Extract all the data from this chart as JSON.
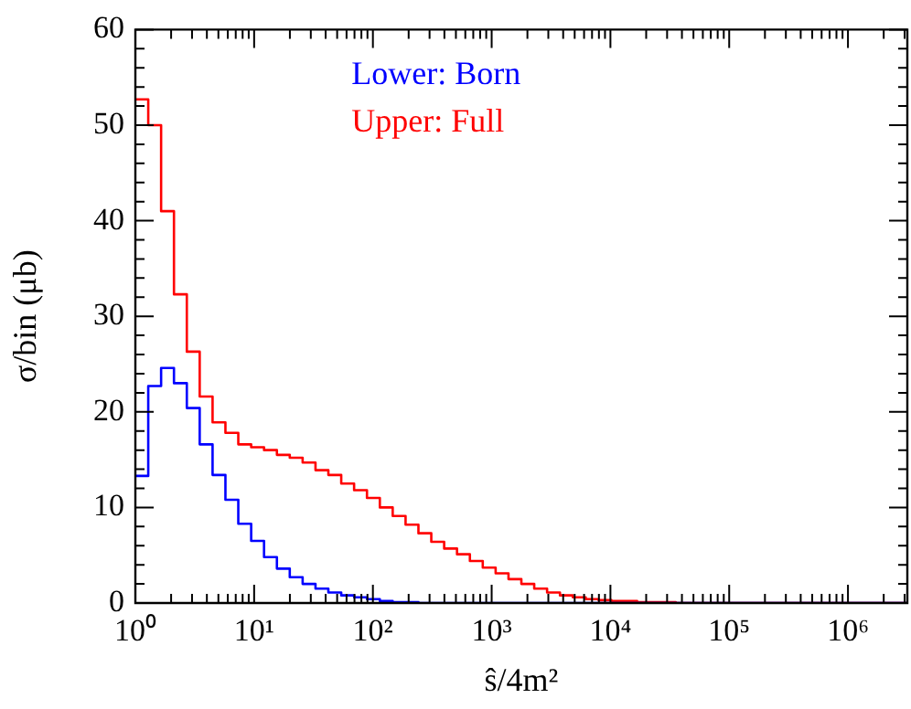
{
  "chart_data": {
    "type": "histogram",
    "xlabel": "ŝ/4m²",
    "ylabel": "σ/bin (μb)",
    "log": "x",
    "grid": false,
    "legend": "top",
    "bins": [
      1,
      1.284,
      1.647,
      2.113,
      2.712,
      3.481,
      4.467,
      5.732,
      7.356,
      9.441,
      12.12,
      15.55,
      19.95,
      25.61,
      32.86,
      42.17,
      54.12,
      69.45,
      89.13,
      114.4,
      146.8,
      188.4,
      241.8,
      310.2,
      398.1,
      510.9,
      655.6,
      841.4,
      1080,
      1386,
      1778,
      2282,
      2929,
      3758,
      4823,
      6190,
      7943,
      10190,
      13080,
      16790,
      21540,
      27650,
      35480,
      45530,
      58430,
      74990,
      96230,
      123500,
      158500,
      203300,
      261000,
      335000,
      430000,
      551800,
      707900,
      908600,
      1166000,
      1496000,
      1920000,
      2464000,
      3162000
    ],
    "series": [
      {
        "name": "Lower: Born",
        "color": "#0000ff",
        "values": [
          13.3,
          22.7,
          24.6,
          23.0,
          20.4,
          16.6,
          13.4,
          10.8,
          8.3,
          6.5,
          4.8,
          3.6,
          2.7,
          2.0,
          1.5,
          1.1,
          0.8,
          0.6,
          0.4,
          0.2,
          0.1,
          0.1,
          0,
          0,
          0,
          0,
          0,
          0,
          0,
          0,
          0,
          0,
          0,
          0,
          0,
          0,
          0,
          0,
          0,
          0,
          0,
          0,
          0,
          0,
          0,
          0,
          0,
          0,
          0,
          0,
          0,
          0,
          0,
          0,
          0,
          0,
          0,
          0,
          0,
          0
        ]
      },
      {
        "name": "Upper: Full",
        "color": "#ff0000",
        "values": [
          52.7,
          50.0,
          41.0,
          32.3,
          26.3,
          21.6,
          18.9,
          17.8,
          16.6,
          16.3,
          16.0,
          15.5,
          15.2,
          14.7,
          13.9,
          13.4,
          12.5,
          11.8,
          11.0,
          10.0,
          9.1,
          8.2,
          7.3,
          6.4,
          5.7,
          5.1,
          4.4,
          3.7,
          3.1,
          2.5,
          2.0,
          1.5,
          1.1,
          0.8,
          0.6,
          0.4,
          0.3,
          0.2,
          0.2,
          0.1,
          0.1,
          0.1,
          0,
          0,
          0,
          0,
          0,
          0,
          0,
          0,
          0,
          0,
          0,
          0,
          0,
          0,
          0,
          0,
          0,
          0
        ]
      }
    ],
    "xlim": [
      1,
      3162000
    ],
    "ylim": [
      0,
      60
    ],
    "xticks": [
      {
        "value": 1,
        "label": "10⁰"
      },
      {
        "value": 10,
        "label": "10¹"
      },
      {
        "value": 100,
        "label": "10²"
      },
      {
        "value": 1000,
        "label": "10³"
      },
      {
        "value": 10000,
        "label": "10⁴"
      },
      {
        "value": 100000,
        "label": "10⁵"
      },
      {
        "value": 1000000,
        "label": "10⁶"
      }
    ],
    "yticks": [
      0,
      10,
      20,
      30,
      40,
      50,
      60
    ]
  }
}
